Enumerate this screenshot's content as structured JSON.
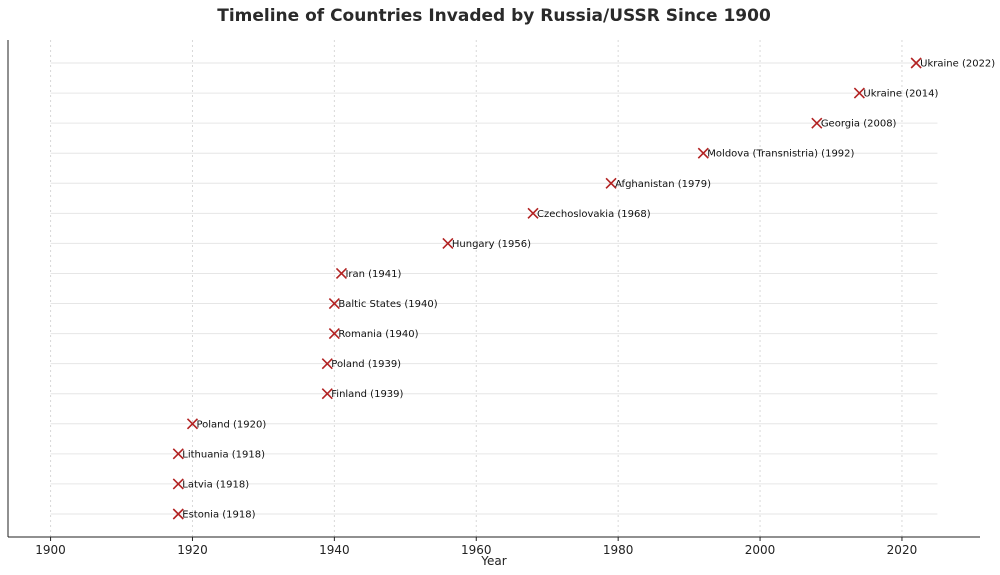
{
  "chart_data": {
    "type": "scatter",
    "title": "Timeline of Countries Invaded by Russia/USSR Since 1900",
    "xlabel": "Year",
    "ylabel": "",
    "xlim": [
      1894,
      2031
    ],
    "x_ticks": [
      1900,
      1920,
      1940,
      1960,
      1980,
      2000,
      2020
    ],
    "y_ticks_shown": false,
    "grid": true,
    "marker": "x",
    "marker_color": "#b22222",
    "points": [
      {
        "x": 1918,
        "label": "Estonia (1918)"
      },
      {
        "x": 1918,
        "label": "Latvia (1918)"
      },
      {
        "x": 1918,
        "label": "Lithuania (1918)"
      },
      {
        "x": 1920,
        "label": "Poland (1920)"
      },
      {
        "x": 1939,
        "label": "Finland (1939)"
      },
      {
        "x": 1939,
        "label": "Poland (1939)"
      },
      {
        "x": 1940,
        "label": "Romania (1940)"
      },
      {
        "x": 1940,
        "label": "Baltic States (1940)"
      },
      {
        "x": 1941,
        "label": "Iran (1941)"
      },
      {
        "x": 1956,
        "label": "Hungary (1956)"
      },
      {
        "x": 1968,
        "label": "Czechoslovakia (1968)"
      },
      {
        "x": 1979,
        "label": "Afghanistan (1979)"
      },
      {
        "x": 1992,
        "label": "Moldova (Transnistria) (1992)"
      },
      {
        "x": 2008,
        "label": "Georgia (2008)"
      },
      {
        "x": 2014,
        "label": "Ukraine (2014)"
      },
      {
        "x": 2022,
        "label": "Ukraine (2022)"
      }
    ]
  }
}
